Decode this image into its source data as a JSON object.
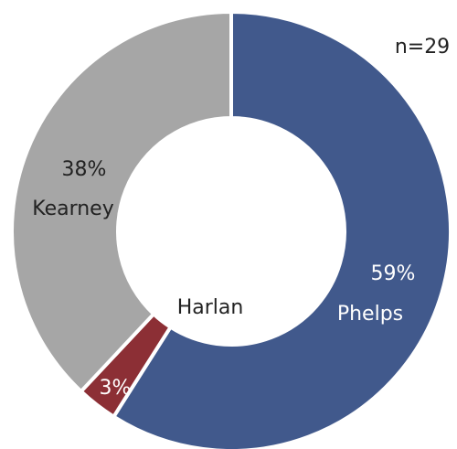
{
  "chart_data": {
    "type": "donut",
    "annotation": "n=29",
    "categories": [
      "Phelps",
      "Harlan",
      "Kearney"
    ],
    "values": [
      59,
      3,
      38
    ],
    "value_labels": [
      "59%",
      "3%",
      "38%"
    ],
    "colors": [
      "#41598c",
      "#8c2f35",
      "#a6a6a6"
    ]
  }
}
